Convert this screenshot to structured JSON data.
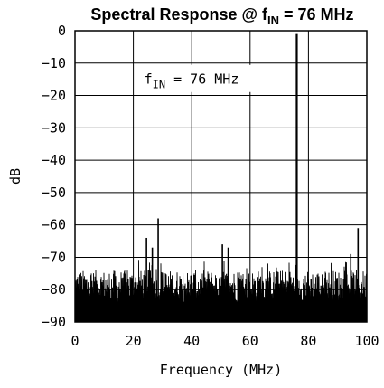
{
  "chart_data": {
    "type": "line",
    "title_main": "Spectral Response @ f",
    "title_sub": "IN",
    "title_tail": " = 76 MHz",
    "xlabel": "Frequency (MHz)",
    "ylabel": "dB",
    "xlim": [
      0,
      100
    ],
    "ylim": [
      -90,
      0
    ],
    "xticks": [
      0,
      20,
      40,
      60,
      80,
      100
    ],
    "xtick_labels": [
      "0",
      "20",
      "40",
      "60",
      "80",
      "100"
    ],
    "yticks": [
      0,
      -10,
      -20,
      -30,
      -40,
      -50,
      -60,
      -70,
      -80,
      -90
    ],
    "ytick_labels": [
      "0",
      "−10",
      "−20",
      "−30",
      "−40",
      "−50",
      "−60",
      "−70",
      "−80",
      "−90"
    ],
    "grid": true,
    "annotation": {
      "main": "f",
      "sub": "IN",
      "tail": " = 76 MHz"
    },
    "noise_floor_db": -80,
    "noise_peak_max_db": -71,
    "series": [
      {
        "spurs": [
          {
            "x": 24.5,
            "y": -64
          },
          {
            "x": 26.5,
            "y": -67
          },
          {
            "x": 28.5,
            "y": -58
          },
          {
            "x": 50.5,
            "y": -66
          },
          {
            "x": 52.5,
            "y": -67
          },
          {
            "x": 76,
            "y": -1
          },
          {
            "x": 94.5,
            "y": -69
          },
          {
            "x": 97,
            "y": -61
          }
        ]
      }
    ]
  }
}
